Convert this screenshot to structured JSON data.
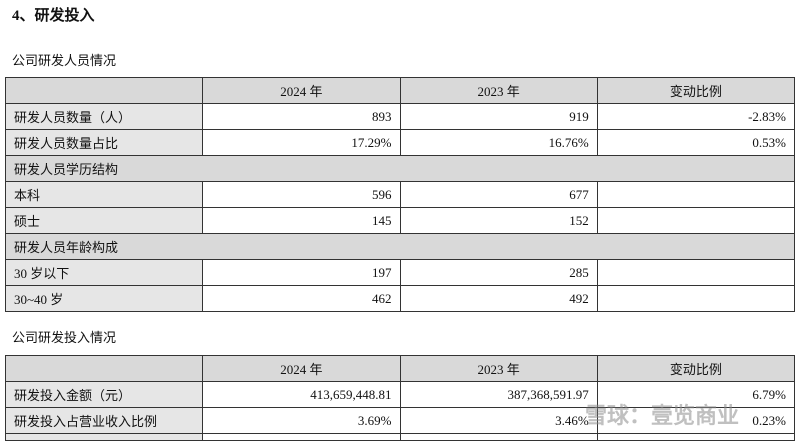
{
  "heading": "4、研发投入",
  "personnel": {
    "caption": "公司研发人员情况",
    "header": [
      "2024 年",
      "2023 年",
      "变动比例"
    ],
    "rows": [
      [
        "研发人员数量（人）",
        "893",
        "919",
        "-2.83%"
      ],
      [
        "研发人员数量占比",
        "17.29%",
        "16.76%",
        "0.53%"
      ],
      [
        "研发人员学历结构"
      ],
      [
        "本科",
        "596",
        "677"
      ],
      [
        "硕士",
        "145",
        "152"
      ],
      [
        "研发人员年龄构成"
      ],
      [
        "30 岁以下",
        "197",
        "285"
      ],
      [
        "30~40 岁",
        "462",
        "492"
      ]
    ]
  },
  "investment": {
    "caption": "公司研发投入情况",
    "header": [
      "2024 年",
      "2023 年",
      "变动比例"
    ],
    "rows": [
      [
        "研发投入金额（元）",
        "413,659,448.81",
        "387,368,591.97",
        "6.79%"
      ],
      [
        "研发投入占营业收入比例",
        "3.69%",
        "3.46%",
        "0.23%"
      ]
    ]
  },
  "watermark": "雪球：壹览商业"
}
